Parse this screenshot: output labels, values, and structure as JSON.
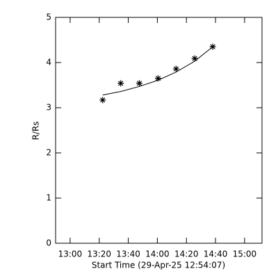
{
  "chart_data": {
    "type": "scatter",
    "x_label": "Start Time (29-Apr-25 12:54:07)",
    "y_label": "R/Rs",
    "xlim": [
      770,
      912
    ],
    "ylim": [
      0,
      5
    ],
    "xticks": [
      {
        "value": 780,
        "label": "13:00"
      },
      {
        "value": 800,
        "label": "13:20"
      },
      {
        "value": 820,
        "label": "13:40"
      },
      {
        "value": 840,
        "label": "14:00"
      },
      {
        "value": 860,
        "label": "14:20"
      },
      {
        "value": 880,
        "label": "14:40"
      },
      {
        "value": 900,
        "label": "15:00"
      }
    ],
    "yticks": [
      0,
      1,
      2,
      3,
      4,
      5
    ],
    "color": "#000000",
    "x": [
      802.4,
      814.8,
      827.6,
      840.5,
      852.9,
      865.7,
      878.1
    ],
    "series": [
      {
        "values": [
          3.17,
          3.54,
          3.54,
          3.65,
          3.86,
          4.09,
          4.35
        ],
        "marker": "asterisk"
      },
      {
        "values": [
          3.28,
          3.36,
          3.47,
          3.61,
          3.79,
          4.03,
          4.35
        ],
        "marker": "line"
      }
    ]
  }
}
